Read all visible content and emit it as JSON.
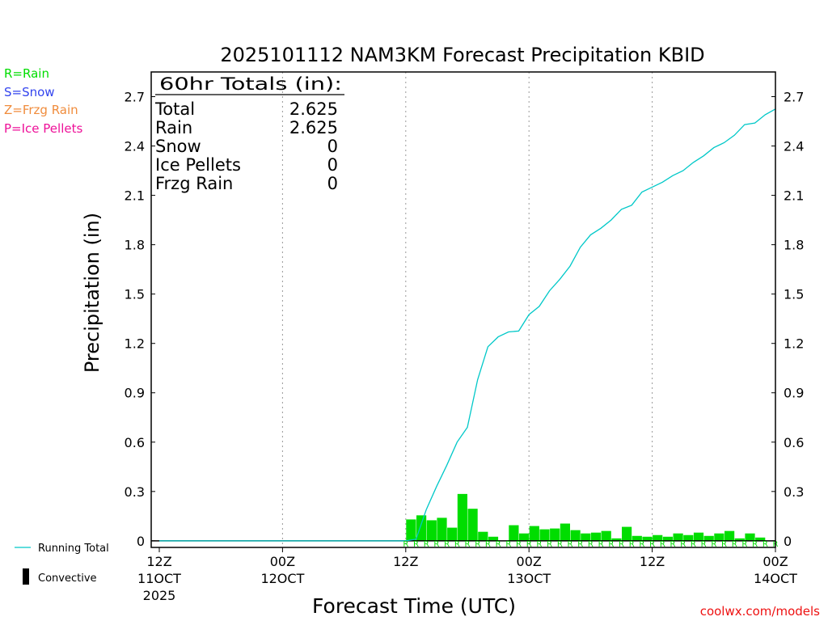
{
  "colors": {
    "rain": "#00dd00",
    "snow": "#3344ee",
    "frzg_rain": "#f08c3c",
    "ice_pellets": "#ee1199",
    "running_total": "#00c8c8",
    "convective": "#000000",
    "footer": "#ee1111"
  },
  "legend": {
    "rain": "R=Rain",
    "snow": "S=Snow",
    "frzg_rain": "Z=Frzg Rain",
    "ice_pellets": "P=Ice Pellets",
    "running_total": "Running Total",
    "convective": "Convective"
  },
  "totals_box": {
    "title": "60hr Totals (in):",
    "rows": [
      {
        "label": "Total",
        "value": "2.625"
      },
      {
        "label": "Rain",
        "value": "2.625"
      },
      {
        "label": "Snow",
        "value": "0"
      },
      {
        "label": "Ice Pellets",
        "value": "0"
      },
      {
        "label": "Frzg Rain",
        "value": "0"
      }
    ]
  },
  "footer": "coolwx.com/models",
  "chart_data": {
    "type": "bar",
    "title": "2025101112 NAM3KM Forecast Precipitation KBID",
    "xlabel": "Forecast Time (UTC)",
    "ylabel": "Precipitation (in)",
    "ylim": [
      -0.04,
      2.85
    ],
    "xlim_hours": [
      0,
      60
    ],
    "yticks": [
      "0",
      "0.3",
      "0.6",
      "0.9",
      "1.2",
      "1.5",
      "1.8",
      "2.1",
      "2.4",
      "2.7"
    ],
    "xticks": [
      {
        "hour": 0,
        "lines": [
          "12Z",
          "11OCT",
          "2025"
        ]
      },
      {
        "hour": 12,
        "lines": [
          "00Z",
          "12OCT"
        ]
      },
      {
        "hour": 24,
        "lines": [
          "12Z"
        ]
      },
      {
        "hour": 36,
        "lines": [
          "00Z",
          "13OCT"
        ]
      },
      {
        "hour": 48,
        "lines": [
          "12Z"
        ]
      },
      {
        "hour": 60,
        "lines": [
          "00Z",
          "14OCT"
        ]
      }
    ],
    "ptype_marker": "R",
    "hourly_hours": [
      25,
      26,
      27,
      28,
      29,
      30,
      31,
      32,
      33,
      34,
      35,
      36,
      37,
      38,
      39,
      40,
      41,
      42,
      43,
      44,
      45,
      46,
      47,
      48,
      49,
      50,
      51,
      52,
      53,
      54,
      55,
      56,
      57,
      58,
      59,
      60
    ],
    "hourly_precip": [
      0.13,
      0.155,
      0.125,
      0.14,
      0.08,
      0.285,
      0.195,
      0.055,
      0.025,
      0.0,
      0.095,
      0.045,
      0.09,
      0.07,
      0.075,
      0.105,
      0.065,
      0.045,
      0.05,
      0.06,
      0.015,
      0.085,
      0.03,
      0.025,
      0.035,
      0.025,
      0.045,
      0.035,
      0.05,
      0.03,
      0.045,
      0.06,
      0.015,
      0.045,
      0.02,
      0.0
    ],
    "running_total_x": [
      0,
      24,
      25,
      26,
      27,
      28,
      29,
      30,
      31,
      32,
      33,
      34,
      35,
      36,
      37,
      38,
      39,
      40,
      41,
      42,
      43,
      44,
      45,
      46,
      47,
      48,
      49,
      50,
      51,
      52,
      53,
      54,
      55,
      56,
      57,
      58,
      59,
      60
    ],
    "running_total_y": [
      0,
      0,
      0.01,
      0.19,
      0.33,
      0.46,
      0.6,
      0.69,
      0.98,
      1.18,
      1.24,
      1.27,
      1.275,
      1.375,
      1.425,
      1.52,
      1.59,
      1.67,
      1.785,
      1.86,
      1.9,
      1.95,
      2.015,
      2.04,
      2.12,
      2.15,
      2.18,
      2.22,
      2.25,
      2.3,
      2.34,
      2.39,
      2.42,
      2.465,
      2.53,
      2.54,
      2.59,
      2.625
    ]
  }
}
